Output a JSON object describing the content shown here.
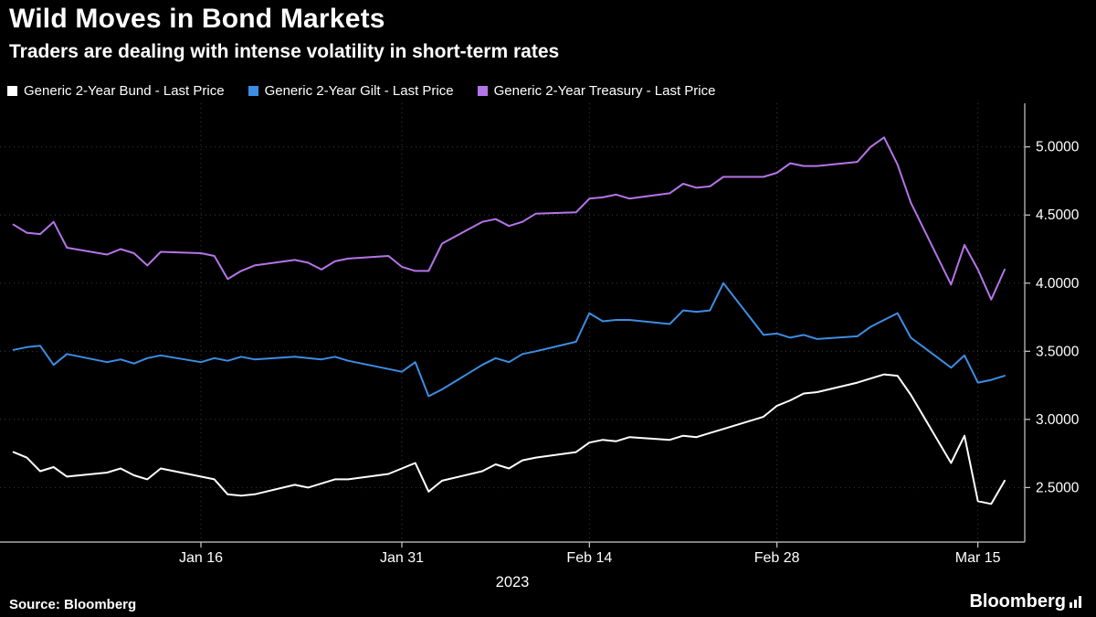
{
  "footer": {
    "source_label": "Source: Bloomberg",
    "logo_text": "Bloomberg"
  },
  "colors": {
    "background": "#000000",
    "text": "#ffffff",
    "grid": "#3a3a3a",
    "axis": "#cccccc"
  },
  "chart_data": {
    "type": "line",
    "title": "Wild Moves in Bond Markets",
    "subtitle": "Traders are dealing with intense volatility in short-term rates",
    "xlabel": "",
    "ylabel": "",
    "x_unit": "day-of-year 2023 (Jan 2 - Mar 17, trading days)",
    "xlim": [
      1,
      77.5
    ],
    "ylim": [
      2.1,
      5.32
    ],
    "grid": true,
    "legend_position": "top",
    "year_label": "2023",
    "xticks": [
      {
        "value": 16,
        "label": "Jan 16"
      },
      {
        "value": 31,
        "label": "Jan 31"
      },
      {
        "value": 45,
        "label": "Feb 14"
      },
      {
        "value": 59,
        "label": "Feb 28"
      },
      {
        "value": 74,
        "label": "Mar 15"
      }
    ],
    "yticks": [
      {
        "value": 2.5,
        "label": "2.5000"
      },
      {
        "value": 3.0,
        "label": "3.0000"
      },
      {
        "value": 3.5,
        "label": "3.5000"
      },
      {
        "value": 4.0,
        "label": "4.0000"
      },
      {
        "value": 4.5,
        "label": "4.5000"
      },
      {
        "value": 5.0,
        "label": "5.0000"
      }
    ],
    "x": [
      2,
      3,
      4,
      5,
      6,
      9,
      10,
      11,
      12,
      13,
      16,
      17,
      18,
      19,
      20,
      23,
      24,
      25,
      26,
      27,
      30,
      31,
      32,
      33,
      34,
      37,
      38,
      39,
      40,
      41,
      44,
      45,
      46,
      47,
      48,
      51,
      52,
      53,
      54,
      55,
      58,
      59,
      60,
      61,
      62,
      65,
      66,
      67,
      68,
      69,
      72,
      73,
      74,
      75,
      76
    ],
    "series": [
      {
        "name": "Generic 2-Year Bund - Last Price",
        "color": "#ffffff",
        "values": [
          2.76,
          2.72,
          2.62,
          2.65,
          2.58,
          2.61,
          2.64,
          2.59,
          2.56,
          2.64,
          2.58,
          2.56,
          2.45,
          2.44,
          2.45,
          2.52,
          2.5,
          2.53,
          2.56,
          2.56,
          2.6,
          2.64,
          2.68,
          2.47,
          2.55,
          2.62,
          2.67,
          2.64,
          2.7,
          2.72,
          2.76,
          2.83,
          2.85,
          2.84,
          2.87,
          2.85,
          2.88,
          2.87,
          2.9,
          2.93,
          3.02,
          3.1,
          3.14,
          3.19,
          3.2,
          3.27,
          3.3,
          3.33,
          3.32,
          3.18,
          2.68,
          2.88,
          2.4,
          2.38,
          2.55
        ]
      },
      {
        "name": "Generic 2-Year Gilt - Last Price",
        "color": "#3d8de3",
        "values": [
          3.51,
          3.53,
          3.54,
          3.4,
          3.48,
          3.42,
          3.44,
          3.41,
          3.45,
          3.47,
          3.42,
          3.45,
          3.43,
          3.46,
          3.44,
          3.46,
          3.45,
          3.44,
          3.46,
          3.43,
          3.37,
          3.35,
          3.42,
          3.17,
          3.22,
          3.4,
          3.45,
          3.42,
          3.48,
          3.5,
          3.57,
          3.78,
          3.72,
          3.73,
          3.73,
          3.7,
          3.8,
          3.79,
          3.8,
          4.0,
          3.62,
          3.63,
          3.6,
          3.62,
          3.59,
          3.61,
          3.68,
          3.73,
          3.78,
          3.6,
          3.38,
          3.47,
          3.27,
          3.29,
          3.32
        ]
      },
      {
        "name": "Generic 2-Year Treasury - Last Price",
        "color": "#b574e8",
        "values": [
          4.43,
          4.37,
          4.36,
          4.45,
          4.26,
          4.21,
          4.25,
          4.22,
          4.13,
          4.23,
          4.22,
          4.2,
          4.03,
          4.09,
          4.13,
          4.17,
          4.15,
          4.1,
          4.16,
          4.18,
          4.2,
          4.12,
          4.09,
          4.09,
          4.29,
          4.45,
          4.47,
          4.42,
          4.45,
          4.51,
          4.52,
          4.62,
          4.63,
          4.65,
          4.62,
          4.66,
          4.73,
          4.7,
          4.71,
          4.78,
          4.78,
          4.81,
          4.88,
          4.86,
          4.86,
          4.89,
          5.0,
          5.07,
          4.87,
          4.59,
          3.99,
          4.28,
          4.1,
          3.88,
          4.1
        ]
      }
    ]
  }
}
